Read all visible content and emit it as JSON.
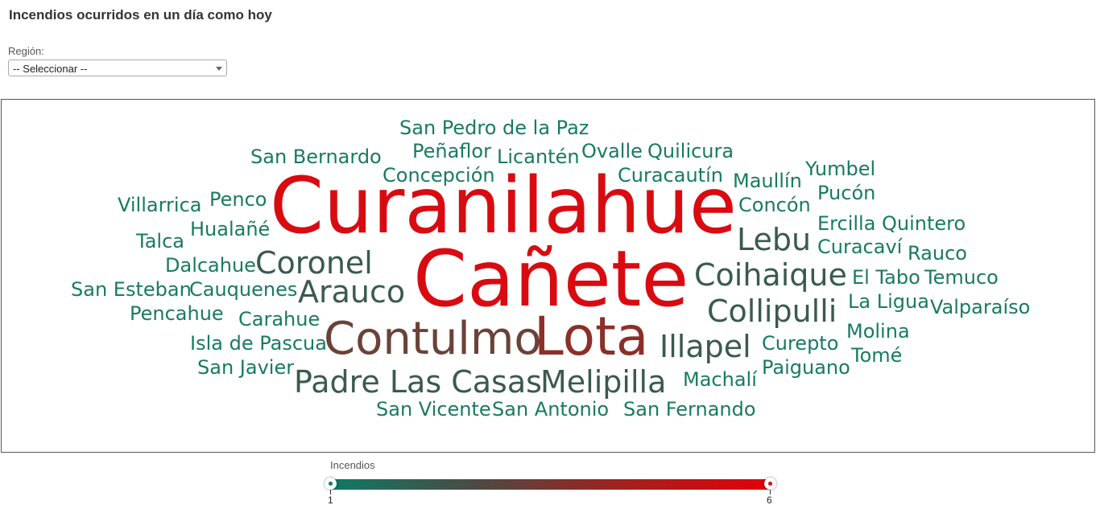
{
  "title": "Incendios ocurridos en un día como hoy",
  "region": {
    "label": "Región:",
    "selected": "-- Seleccionar --"
  },
  "wordcloud": {
    "words": [
      {
        "text": "San Pedro de la Paz",
        "count": 1
      },
      {
        "text": "Peñaflor",
        "count": 1
      },
      {
        "text": "Licantén",
        "count": 1
      },
      {
        "text": "Ovalle",
        "count": 1
      },
      {
        "text": "Quilicura",
        "count": 1
      },
      {
        "text": "San Bernardo",
        "count": 1
      },
      {
        "text": "Concepción",
        "count": 1
      },
      {
        "text": "Curacautín",
        "count": 1
      },
      {
        "text": "Maullín",
        "count": 1
      },
      {
        "text": "Yumbel",
        "count": 1
      },
      {
        "text": "Curanilahue",
        "count": 6
      },
      {
        "text": "Villarrica",
        "count": 1
      },
      {
        "text": "Penco",
        "count": 1
      },
      {
        "text": "Pucón",
        "count": 1
      },
      {
        "text": "Concón",
        "count": 1
      },
      {
        "text": "Talca",
        "count": 1
      },
      {
        "text": "Hualañé",
        "count": 1
      },
      {
        "text": "Ercilla",
        "count": 1
      },
      {
        "text": "Quintero",
        "count": 1
      },
      {
        "text": "Lebu",
        "count": 2
      },
      {
        "text": "Curacaví",
        "count": 1
      },
      {
        "text": "Dalcahue",
        "count": 1
      },
      {
        "text": "Coronel",
        "count": 2
      },
      {
        "text": "Rauco",
        "count": 1
      },
      {
        "text": "Cañete",
        "count": 6
      },
      {
        "text": "Coihaique",
        "count": 2
      },
      {
        "text": "San Esteban",
        "count": 1
      },
      {
        "text": "Cauquenes",
        "count": 1
      },
      {
        "text": "El Tabo",
        "count": 1
      },
      {
        "text": "Temuco",
        "count": 1
      },
      {
        "text": "Arauco",
        "count": 2
      },
      {
        "text": "La Ligua",
        "count": 1
      },
      {
        "text": "Pencahue",
        "count": 1
      },
      {
        "text": "Collipulli",
        "count": 2
      },
      {
        "text": "Valparaíso",
        "count": 1
      },
      {
        "text": "Carahue",
        "count": 1
      },
      {
        "text": "Molina",
        "count": 1
      },
      {
        "text": "Isla de Pascua",
        "count": 1
      },
      {
        "text": "Contulmo",
        "count": 3
      },
      {
        "text": "Lota",
        "count": 4
      },
      {
        "text": "Illapel",
        "count": 2
      },
      {
        "text": "Curepto",
        "count": 1
      },
      {
        "text": "Tomé",
        "count": 1
      },
      {
        "text": "San Javier",
        "count": 1
      },
      {
        "text": "Paiguano",
        "count": 1
      },
      {
        "text": "Machalí",
        "count": 1
      },
      {
        "text": "Padre Las Casas",
        "count": 2
      },
      {
        "text": "Melipilla",
        "count": 2
      },
      {
        "text": "San Vicente",
        "count": 1
      },
      {
        "text": "San Antonio",
        "count": 1
      },
      {
        "text": "San Fernando",
        "count": 1
      }
    ]
  },
  "legend": {
    "title": "Incendios",
    "min": "1",
    "max": "6",
    "color_min": "#0e7a63",
    "color_mid": "#4c4a44",
    "color_max": "#e3000b"
  }
}
